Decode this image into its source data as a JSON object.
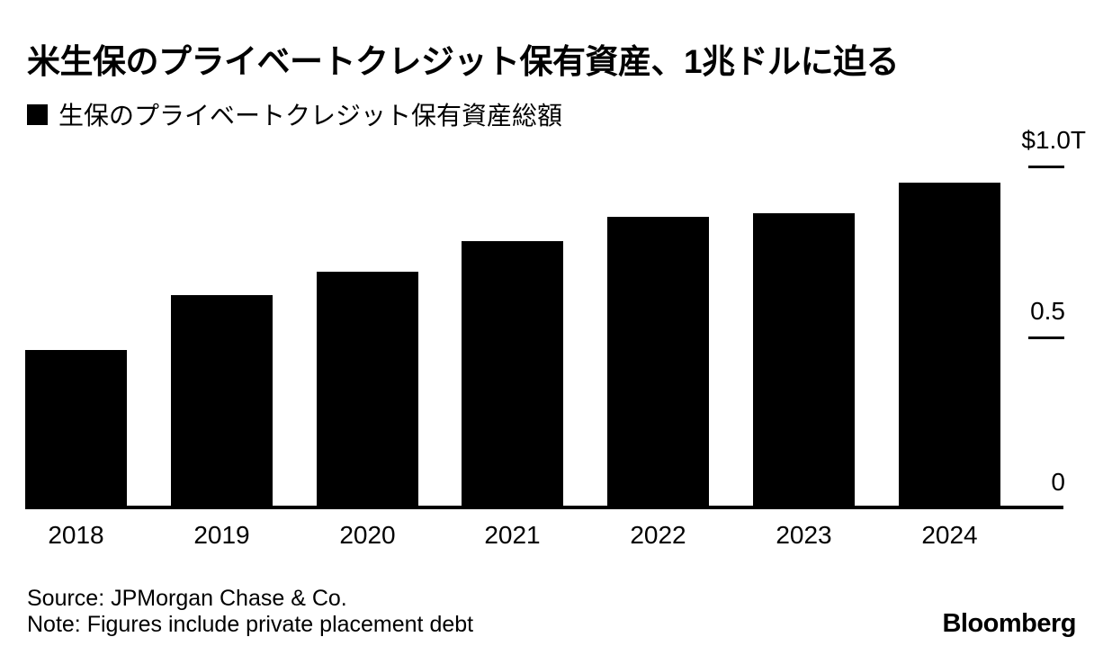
{
  "header": {
    "title": "米生保のプライベートクレジット保有資産、1兆ドルに迫る",
    "legend_label": "生保のプライベートクレジット保有資産総額"
  },
  "chart_data": {
    "type": "bar",
    "title": "米生保のプライベートクレジット保有資産、1兆ドルに迫る",
    "series_name": "生保のプライベートクレジット保有資産総額",
    "categories": [
      "2018",
      "2019",
      "2020",
      "2021",
      "2022",
      "2023",
      "2024"
    ],
    "values": [
      0.46,
      0.62,
      0.69,
      0.78,
      0.85,
      0.86,
      0.95
    ],
    "unit": "USD trillions",
    "ylim": [
      0,
      1.0
    ],
    "y_ticks": [
      {
        "value": 1.0,
        "label": "$1.0T"
      },
      {
        "value": 0.5,
        "label": "0.5"
      },
      {
        "value": 0,
        "label": "0"
      }
    ],
    "bar_color": "#000000",
    "grid": false,
    "legend_position": "top-left"
  },
  "footer": {
    "source": "Source: JPMorgan Chase & Co.",
    "note": "Note: Figures include private placement debt",
    "brand": "Bloomberg"
  },
  "colors": {
    "background": "#ffffff",
    "bar": "#000000",
    "text": "#000000"
  }
}
